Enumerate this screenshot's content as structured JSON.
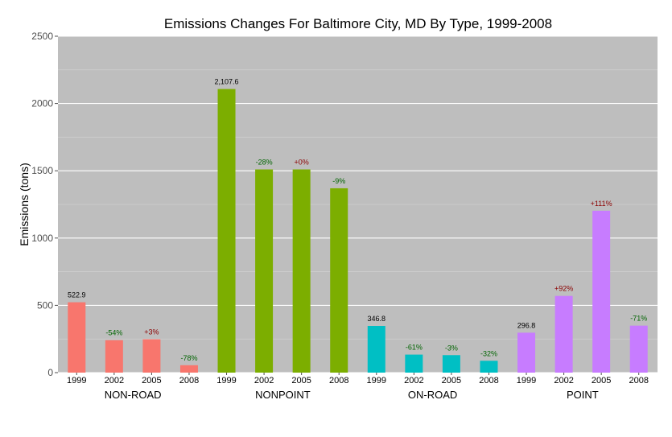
{
  "chart_data": {
    "type": "bar",
    "title": "Emissions Changes For Baltimore City, MD By Type, 1999-2008",
    "xlabel": "",
    "ylabel": "Emissions (tons)",
    "ylim": [
      0,
      2500
    ],
    "yticks": [
      "0",
      "500",
      "1000",
      "1500",
      "2000",
      "2500"
    ],
    "grid": true,
    "panel_color": "#bebebe",
    "positive_change_color": "#8b0000",
    "negative_change_color": "#006400",
    "base_label_color": "#000000",
    "groups": [
      {
        "name": "NON-ROAD",
        "color": "#f8766d",
        "years": [
          "1999",
          "2002",
          "2005",
          "2008"
        ],
        "values": [
          522.9,
          241,
          248,
          55
        ],
        "labels": [
          "522.9",
          "-54%",
          "+3%",
          "-78%"
        ]
      },
      {
        "name": "NONPOINT",
        "color": "#7cae00",
        "years": [
          "1999",
          "2002",
          "2005",
          "2008"
        ],
        "values": [
          2107.6,
          1510,
          1510,
          1370
        ],
        "labels": [
          "2,107.6",
          "-28%",
          "+0%",
          "-9%"
        ]
      },
      {
        "name": "ON-ROAD",
        "color": "#00bfc4",
        "years": [
          "1999",
          "2002",
          "2005",
          "2008"
        ],
        "values": [
          346.8,
          134,
          130,
          88
        ],
        "labels": [
          "346.8",
          "-61%",
          "-3%",
          "-32%"
        ]
      },
      {
        "name": "POINT",
        "color": "#c77cff",
        "years": [
          "1999",
          "2002",
          "2005",
          "2008"
        ],
        "values": [
          296.8,
          570,
          1203,
          349
        ],
        "labels": [
          "296.8",
          "+92%",
          "+111%",
          "-71%"
        ]
      }
    ]
  }
}
